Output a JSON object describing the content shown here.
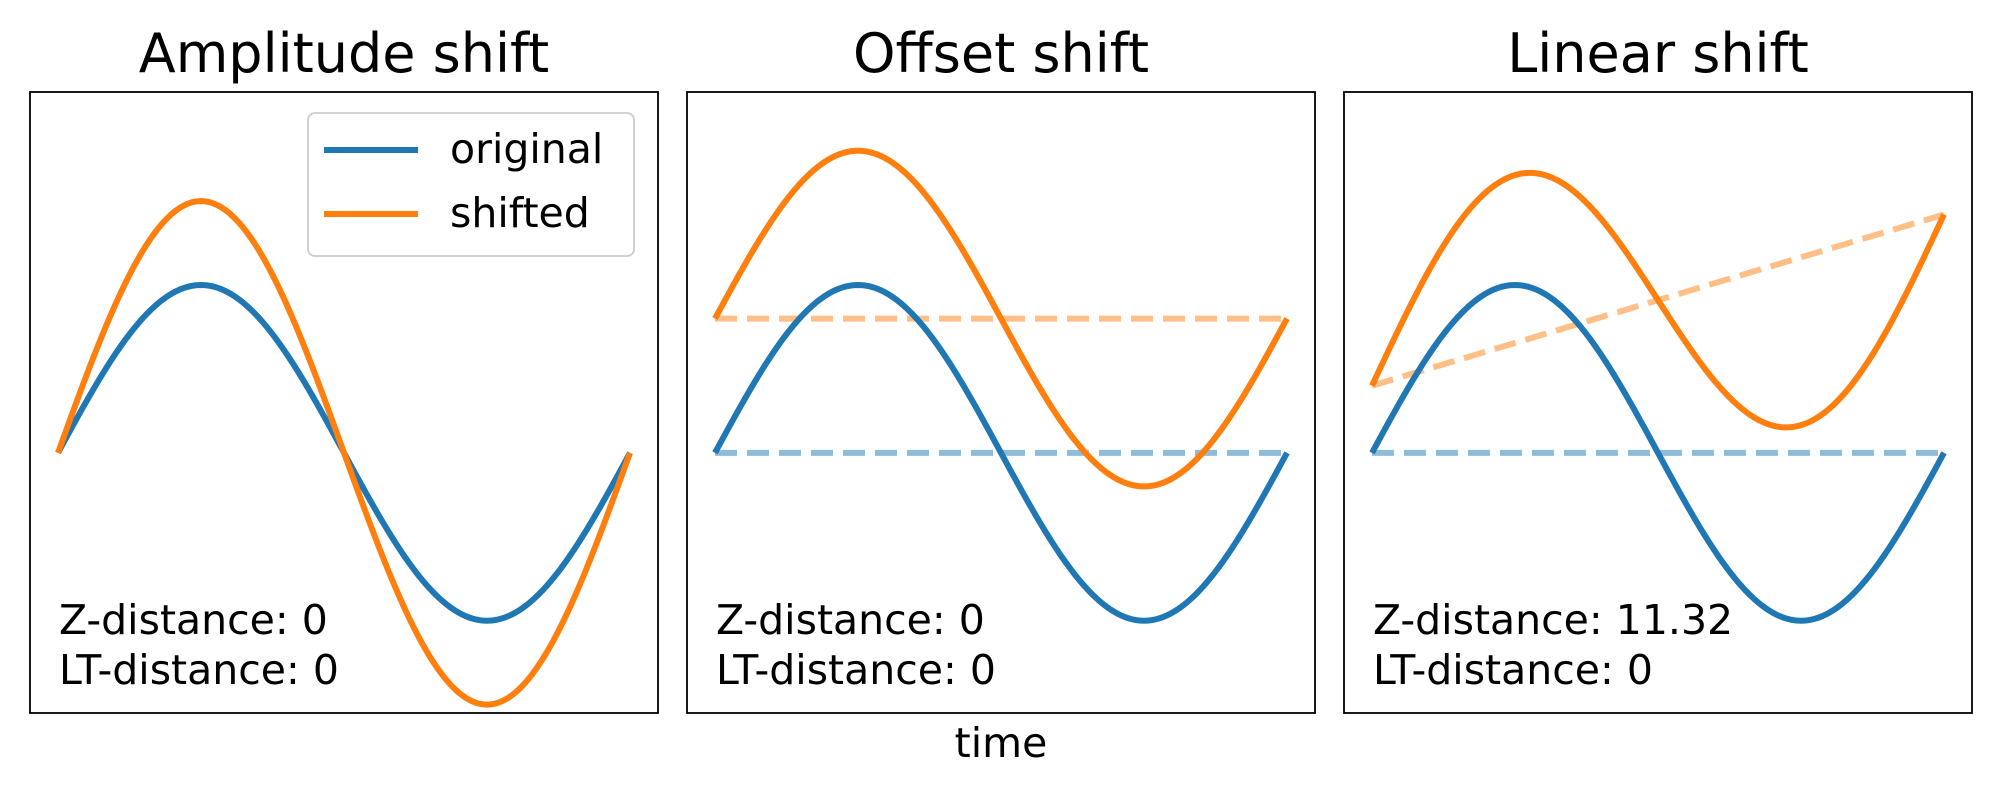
{
  "xlabel": "time",
  "colors": {
    "original": "#1f77b4",
    "shifted": "#ff7f0e",
    "original_light": "#8fbcd9",
    "shifted_light": "#ffbf86"
  },
  "legend": {
    "placement": "top-right",
    "entries": [
      {
        "label": "original",
        "series": "original"
      },
      {
        "label": "shifted",
        "series": "shifted"
      }
    ]
  },
  "chart_data": [
    {
      "type": "line",
      "title": "Amplitude shift",
      "xlim": [
        0,
        6.2832
      ],
      "ylim": [
        -1.55,
        2.15
      ],
      "grid": false,
      "series": [
        {
          "name": "original",
          "role": "original",
          "style": "solid",
          "function": "sin(t)"
        },
        {
          "name": "shifted",
          "role": "shifted",
          "style": "solid",
          "function": "1.5*sin(t)"
        }
      ],
      "annotations": [
        "Z-distance: 0",
        "LT-distance: 0"
      ],
      "show_legend": true
    },
    {
      "type": "line",
      "title": "Offset shift",
      "xlim": [
        0,
        6.2832
      ],
      "ylim": [
        -1.55,
        2.15
      ],
      "grid": false,
      "series": [
        {
          "name": "original",
          "role": "original",
          "style": "solid",
          "function": "sin(t)"
        },
        {
          "name": "shifted",
          "role": "shifted",
          "style": "solid",
          "function": "sin(t)+0.8"
        },
        {
          "name": "original trend",
          "role": "original",
          "style": "dashed",
          "points": [
            [
              0,
              0
            ],
            [
              6.2832,
              0
            ]
          ]
        },
        {
          "name": "shifted trend",
          "role": "shifted",
          "style": "dashed",
          "points": [
            [
              0,
              0.8
            ],
            [
              6.2832,
              0.8
            ]
          ]
        }
      ],
      "annotations": [
        "Z-distance: 0",
        "LT-distance: 0"
      ],
      "show_legend": false
    },
    {
      "type": "line",
      "title": "Linear shift",
      "xlim": [
        0,
        6.2832
      ],
      "ylim": [
        -1.55,
        2.15
      ],
      "grid": false,
      "series": [
        {
          "name": "original",
          "role": "original",
          "style": "solid",
          "function": "sin(t)"
        },
        {
          "name": "shifted",
          "role": "shifted",
          "style": "solid",
          "function": "sin(t)+0.4+1.02*t/6.2832"
        },
        {
          "name": "original trend",
          "role": "original",
          "style": "dashed",
          "points": [
            [
              0,
              0
            ],
            [
              6.2832,
              0
            ]
          ]
        },
        {
          "name": "shifted trend",
          "role": "shifted",
          "style": "dashed",
          "points": [
            [
              0,
              0.4
            ],
            [
              6.2832,
              1.42
            ]
          ]
        }
      ],
      "annotations": [
        "Z-distance: 11.32",
        "LT-distance: 0"
      ],
      "show_legend": false
    }
  ]
}
